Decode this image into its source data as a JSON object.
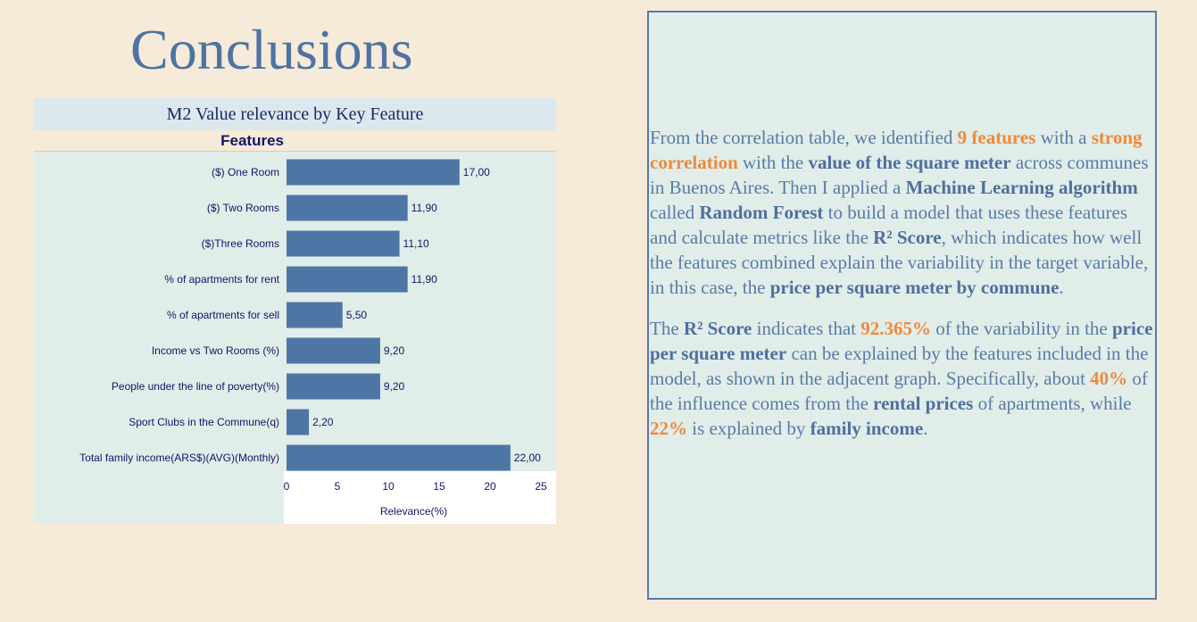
{
  "page": {
    "title": "Conclusions"
  },
  "chart_data": {
    "type": "bar",
    "orientation": "horizontal",
    "title": "M2 Value relevance by Key Feature",
    "category_header": "Features",
    "xlabel": "Relevance(%)",
    "xlim": [
      0,
      25
    ],
    "xticks": [
      "0",
      "5",
      "10",
      "15",
      "20",
      "25"
    ],
    "categories": [
      "($) One Room",
      "($) Two Rooms",
      "($)Three Rooms",
      "% of apartments for rent",
      "% of apartments for sell",
      "Income vs Two Rooms (%)",
      "People under the line of poverty(%)",
      "Sport Clubs in the Commune(q)",
      "Total family income(ARS$)(AVG)(Monthly)"
    ],
    "values": [
      17.0,
      11.9,
      11.1,
      11.9,
      5.5,
      9.2,
      9.2,
      2.2,
      22.0
    ],
    "data_labels": [
      "17,00",
      "11,90",
      "11,10",
      "11,90",
      "5,50",
      "9,20",
      "9,20",
      "2,20",
      "22,00"
    ],
    "bar_color": "#4e76a5",
    "grid": false
  },
  "text_panel": {
    "p1": {
      "s1": "From the correlation table, we identified ",
      "h1": "9 features",
      "s2": " with a ",
      "h2": "strong correlation",
      "s3": " with the ",
      "b1": "value of the square meter",
      "s4": " across communes in Buenos Aires.  Then I applied a ",
      "b2": "Machine Learning algorithm",
      "s5": " called ",
      "b3": "Random Forest",
      "s6": " to build a model that uses these features and calculate metrics like the ",
      "b4": "R² Score",
      "s7": ", which indicates how well the features combined explain the variability in the target variable, in this case, the ",
      "b5": "price per square meter by commune",
      "s8": "."
    },
    "p2": {
      "s1": "The ",
      "b1": "R² Score",
      "s2": " indicates that ",
      "h1": "92.365%",
      "s3": " of the variability in the ",
      "b2": "price per square meter",
      "s4": " can be explained by the features included in the model, as shown in the adjacent graph. Specifically, about ",
      "h2": "40%",
      "s5": " of the influence comes from the ",
      "b3": "rental prices",
      "s6": " of apartments, while ",
      "h3": "22%",
      "s7": " is explained by ",
      "b4": "family income",
      "s8": "."
    }
  }
}
